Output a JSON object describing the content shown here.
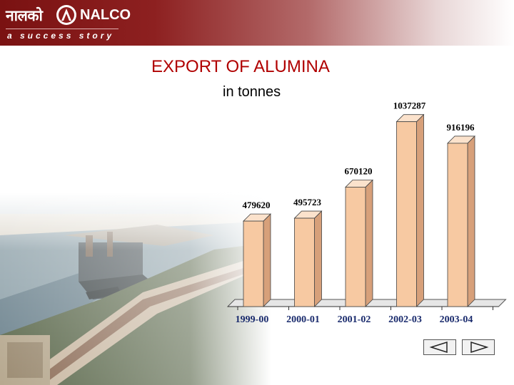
{
  "header": {
    "logo_hindi": "नालको",
    "logo_english": "NALCO",
    "tagline": "a success story"
  },
  "colors": {
    "title": "#b00000",
    "bar_front": "#f7c9a2",
    "bar_side": "#d7a07a",
    "bar_top": "#fbe2cc",
    "label": "#1a2b6d",
    "banner": "#7a1212"
  },
  "chart_data": {
    "type": "bar",
    "title": "EXPORT OF ALUMINA",
    "subtitle": "in tonnes",
    "categories": [
      "1999-00",
      "2000-01",
      "2001-02",
      "2002-03",
      "2003-04"
    ],
    "values": [
      479620,
      495723,
      670120,
      1037287,
      916196
    ],
    "data_labels": [
      "479620",
      "495723",
      "670120",
      "1037287",
      "916196"
    ],
    "ylim": [
      0,
      1200000
    ],
    "grid": false,
    "legend": "none"
  },
  "navigation": {
    "prev_icon": "triangle-left-icon",
    "next_icon": "triangle-right-icon"
  }
}
